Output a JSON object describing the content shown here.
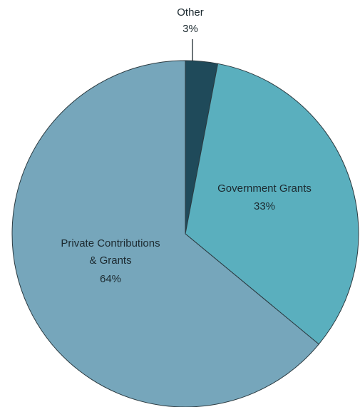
{
  "chart_data": {
    "type": "pie",
    "title": "",
    "slices": [
      {
        "label": "Other",
        "value": 3,
        "value_label": "3%",
        "color": "#1f4a5a"
      },
      {
        "label": "Government Grants",
        "value": 33,
        "value_label": "33%",
        "color": "#5aafbe"
      },
      {
        "label": "Private Contributions & Grants",
        "label_lines": [
          "Private Contributions",
          "& Grants"
        ],
        "value": 64,
        "value_label": "64%",
        "color": "#76a6bb"
      }
    ],
    "start_angle_deg": 0,
    "direction": "clockwise",
    "legend": "none"
  }
}
